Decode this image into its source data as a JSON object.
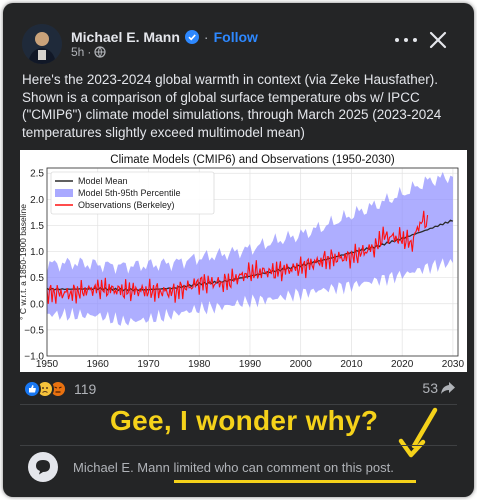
{
  "post": {
    "author": "Michael E. Mann",
    "follow_label": "Follow",
    "separator": "·",
    "time": "5h",
    "text": "Here's the 2023-2024 global warmth in context (via Zeke Hausfather). Shown is a comparison of global surface temperature obs w/ IPCC (\"CMIP6\") climate model simulations, through March 2025 (2023-2024 temperatures slightly exceed multimodel mean)"
  },
  "icons": {
    "verified": "verified-badge-icon",
    "audience": "globe-icon",
    "more": "more-options-icon",
    "close": "close-icon",
    "share": "share-arrow-icon",
    "comment": "speech-bubble-icon"
  },
  "colors": {
    "card_bg": "#242526",
    "link_blue": "#2d88ff",
    "annotation_yellow": "#f5d21a",
    "model_mean": "#2b2b2b",
    "model_band": "#8c8cff",
    "observations": "#ff1010"
  },
  "engagement": {
    "reaction_types": [
      "like",
      "sad",
      "angry"
    ],
    "reaction_count": "119",
    "share_count": "53"
  },
  "annotation": {
    "text": "Gee, I wonder why?"
  },
  "comments": {
    "author": "Michael E. Mann",
    "limited": "limited who can comment on this post."
  },
  "chart_data": {
    "type": "line",
    "title": "Climate Models (CMIP6) and Observations (1950-2030)",
    "ylabel": "° C w.r.t. a 1850-1900 baseline",
    "xlim": [
      1950,
      2031
    ],
    "ylim": [
      -1.0,
      2.6
    ],
    "x_ticks": [
      1950,
      1960,
      1970,
      1980,
      1990,
      2000,
      2010,
      2020,
      2030
    ],
    "y_ticks": [
      -1.0,
      -0.5,
      0.0,
      0.5,
      1.0,
      1.5,
      2.0,
      2.5
    ],
    "y_tick_labels": [
      "−1.0",
      "−0.5",
      "0.0",
      "0.5",
      "1.0",
      "1.5",
      "2.0",
      "2.5"
    ],
    "grid": true,
    "legend_position": "top-left",
    "legend": [
      "Model Mean",
      "Model 5th-95th Percentile",
      "Observations (Berkeley)"
    ],
    "series": [
      {
        "name": "Model Mean",
        "x": [
          1950,
          1955,
          1960,
          1965,
          1970,
          1975,
          1980,
          1985,
          1990,
          1995,
          2000,
          2005,
          2010,
          2015,
          2020,
          2025,
          2030
        ],
        "values": [
          0.28,
          0.28,
          0.29,
          0.27,
          0.27,
          0.3,
          0.38,
          0.43,
          0.53,
          0.63,
          0.73,
          0.85,
          0.98,
          1.1,
          1.25,
          1.42,
          1.6
        ]
      },
      {
        "name": "Model 5th-95th Percentile",
        "x": [
          1950,
          1955,
          1960,
          1965,
          1970,
          1975,
          1980,
          1985,
          1990,
          1995,
          2000,
          2005,
          2010,
          2015,
          2020,
          2025,
          2030
        ],
        "upper": [
          0.75,
          0.78,
          0.75,
          0.72,
          0.74,
          0.78,
          0.88,
          0.95,
          1.05,
          1.2,
          1.32,
          1.5,
          1.7,
          1.9,
          2.1,
          2.35,
          2.45
        ],
        "lower": [
          -0.2,
          -0.22,
          -0.22,
          -0.35,
          -0.3,
          -0.2,
          -0.1,
          -0.05,
          0.05,
          0.1,
          0.2,
          0.28,
          0.35,
          0.45,
          0.55,
          0.7,
          0.8
        ]
      },
      {
        "name": "Observations (Berkeley)",
        "x": [
          1950,
          1955,
          1960,
          1965,
          1970,
          1975,
          1980,
          1985,
          1990,
          1995,
          2000,
          2005,
          2010,
          2015,
          2016,
          2020,
          2022,
          2023,
          2024,
          2025.2
        ],
        "values": [
          0.2,
          0.2,
          0.3,
          0.25,
          0.25,
          0.22,
          0.4,
          0.4,
          0.6,
          0.62,
          0.7,
          0.85,
          0.9,
          1.1,
          1.3,
          1.25,
          1.15,
          1.45,
          1.6,
          1.55
        ]
      }
    ]
  }
}
